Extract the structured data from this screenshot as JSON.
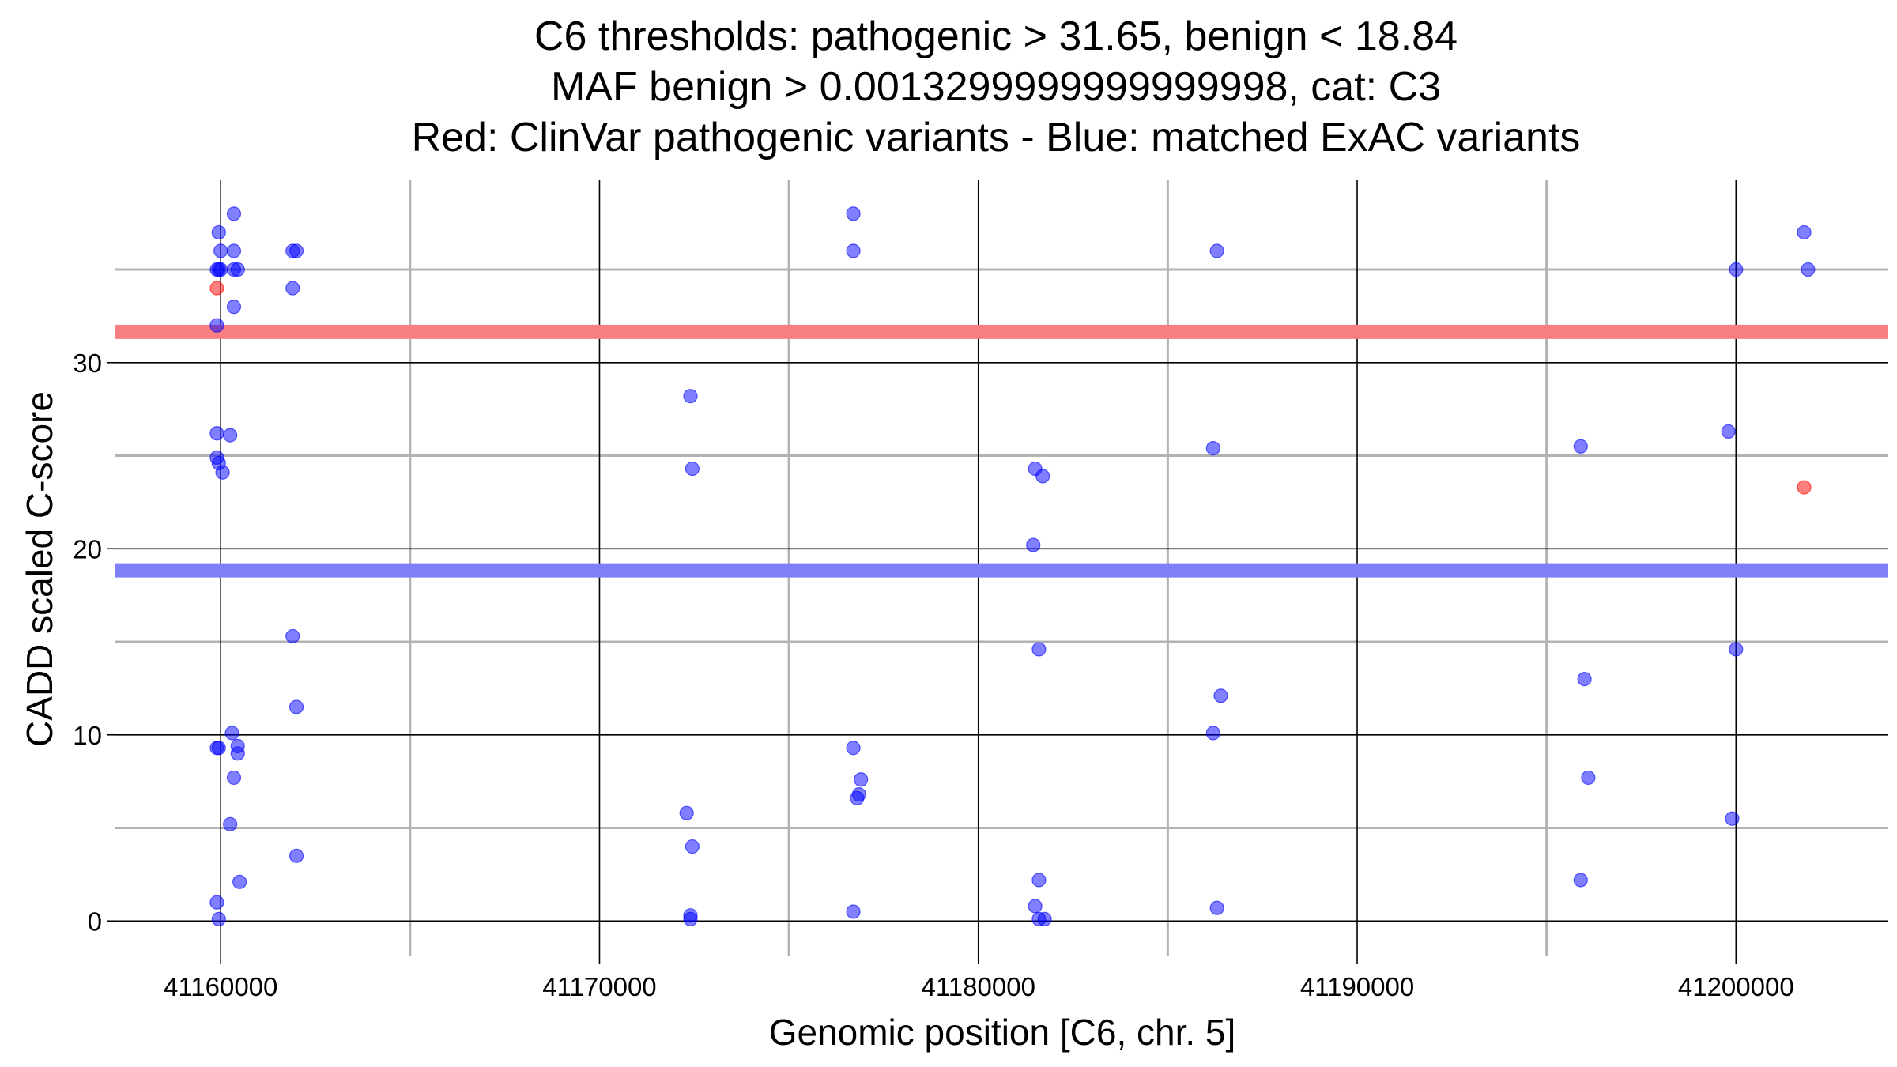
{
  "chart_data": {
    "type": "scatter",
    "title_lines": [
      "C6 thresholds: pathogenic > 31.65, benign < 18.84",
      "MAF benign > 0.0013299999999999998, cat: C3",
      "Red: ClinVar pathogenic variants - Blue: matched ExAC variants"
    ],
    "xlabel": "Genomic position [C6, chr. 5]",
    "ylabel": "CADD scaled C-score",
    "xlim": [
      41157200,
      41204000
    ],
    "ylim": [
      -1.9,
      39.8
    ],
    "x_ticks": [
      41160000,
      41170000,
      41180000,
      41190000,
      41200000
    ],
    "x_tick_labels": [
      "41160000",
      "41170000",
      "41180000",
      "41190000",
      "41200000"
    ],
    "x_minor_grid": [
      41165000,
      41175000,
      41185000,
      41195000
    ],
    "y_ticks": [
      0,
      10,
      20,
      30
    ],
    "y_tick_labels": [
      "0",
      "10",
      "20",
      "30"
    ],
    "y_minor_grid": [
      5,
      15,
      25,
      35
    ],
    "grid": true,
    "thresholds": [
      {
        "name": "pathogenic",
        "value": 31.65,
        "color": "#f87f7f"
      },
      {
        "name": "benign",
        "value": 18.84,
        "color": "#7f7ff8"
      }
    ],
    "series": [
      {
        "name": "ClinVar pathogenic variants",
        "color": "#ff0000",
        "points": [
          [
            41159900,
            34.0
          ],
          [
            41201800,
            23.3
          ]
        ]
      },
      {
        "name": "matched ExAC variants",
        "color": "#0000ff",
        "points": [
          [
            41159950,
            37.0
          ],
          [
            41160000,
            36.0
          ],
          [
            41159900,
            35.0
          ],
          [
            41159950,
            35.0
          ],
          [
            41160000,
            35.0
          ],
          [
            41159900,
            32.0
          ],
          [
            41159900,
            26.2
          ],
          [
            41159900,
            24.9
          ],
          [
            41159950,
            24.6
          ],
          [
            41160050,
            24.1
          ],
          [
            41159900,
            9.3
          ],
          [
            41159950,
            9.3
          ],
          [
            41159900,
            1.0
          ],
          [
            41159950,
            0.1
          ],
          [
            41160350,
            38.0
          ],
          [
            41160350,
            36.0
          ],
          [
            41160350,
            35.0
          ],
          [
            41160450,
            35.0
          ],
          [
            41160350,
            33.0
          ],
          [
            41160250,
            26.1
          ],
          [
            41160300,
            10.1
          ],
          [
            41160450,
            9.4
          ],
          [
            41160450,
            9.0
          ],
          [
            41160350,
            7.7
          ],
          [
            41160250,
            5.2
          ],
          [
            41160500,
            2.1
          ],
          [
            41161900,
            36.0
          ],
          [
            41162000,
            36.0
          ],
          [
            41161900,
            34.0
          ],
          [
            41161900,
            15.3
          ],
          [
            41162000,
            11.5
          ],
          [
            41162000,
            3.5
          ],
          [
            41172400,
            28.2
          ],
          [
            41172450,
            24.3
          ],
          [
            41172300,
            5.8
          ],
          [
            41172450,
            4.0
          ],
          [
            41172400,
            0.3
          ],
          [
            41172400,
            0.1
          ],
          [
            41176700,
            38.0
          ],
          [
            41176700,
            36.0
          ],
          [
            41176700,
            9.3
          ],
          [
            41176900,
            7.6
          ],
          [
            41176850,
            6.8
          ],
          [
            41176800,
            6.6
          ],
          [
            41176700,
            0.5
          ],
          [
            41181500,
            24.3
          ],
          [
            41181700,
            23.9
          ],
          [
            41181450,
            20.2
          ],
          [
            41181600,
            14.6
          ],
          [
            41181600,
            2.2
          ],
          [
            41181500,
            0.8
          ],
          [
            41181600,
            0.1
          ],
          [
            41181750,
            0.1
          ],
          [
            41186300,
            36.0
          ],
          [
            41186200,
            25.4
          ],
          [
            41186400,
            12.1
          ],
          [
            41186200,
            10.1
          ],
          [
            41186300,
            0.7
          ],
          [
            41195900,
            25.5
          ],
          [
            41196000,
            13.0
          ],
          [
            41196100,
            7.7
          ],
          [
            41195900,
            2.2
          ],
          [
            41199800,
            26.3
          ],
          [
            41200000,
            35.0
          ],
          [
            41200000,
            14.6
          ],
          [
            41199900,
            5.5
          ],
          [
            41201800,
            37.0
          ],
          [
            41201900,
            35.0
          ]
        ]
      }
    ]
  }
}
